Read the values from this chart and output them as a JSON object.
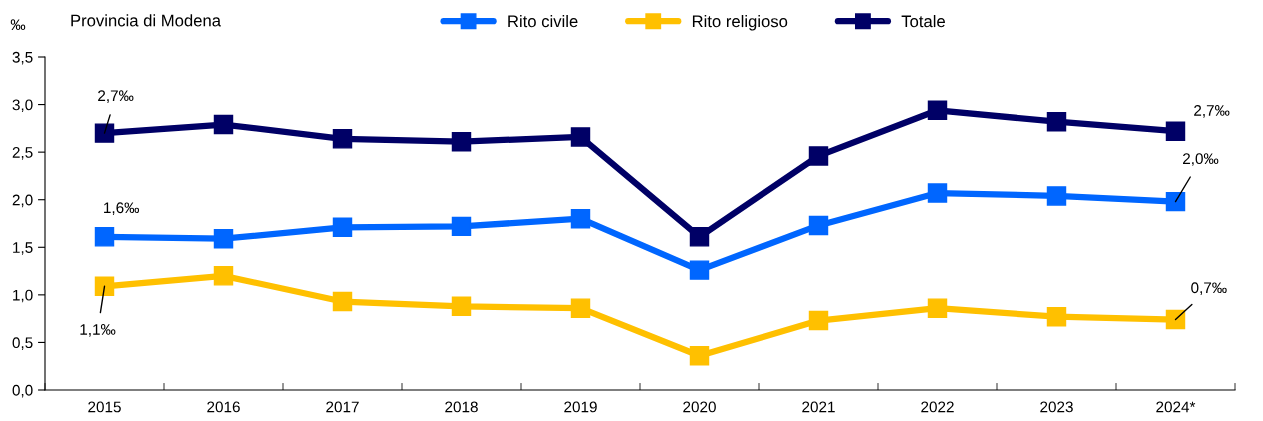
{
  "chart_data": {
    "type": "line",
    "title": "Provincia di Modena",
    "ylabel": "‰",
    "categories": [
      "2015",
      "2016",
      "2017",
      "2018",
      "2019",
      "2020",
      "2021",
      "2022",
      "2023",
      "2024*"
    ],
    "series": [
      {
        "name": "Rito civile",
        "color": "#0066ff",
        "values": [
          1.61,
          1.59,
          1.71,
          1.72,
          1.8,
          1.26,
          1.73,
          2.07,
          2.04,
          1.98
        ]
      },
      {
        "name": "Rito religioso",
        "color": "#ffc000",
        "values": [
          1.09,
          1.2,
          0.93,
          0.88,
          0.86,
          0.36,
          0.73,
          0.86,
          0.77,
          0.74
        ]
      },
      {
        "name": "Totale",
        "color": "#000066",
        "values": [
          2.7,
          2.79,
          2.64,
          2.61,
          2.66,
          1.61,
          2.46,
          2.94,
          2.82,
          2.72
        ]
      }
    ],
    "ylim": [
      0,
      3.5
    ],
    "yticks": [
      {
        "value": 0,
        "label": "0,0"
      },
      {
        "value": 0.5,
        "label": "0,5"
      },
      {
        "value": 1,
        "label": "1,0"
      },
      {
        "value": 1.5,
        "label": "1,5"
      },
      {
        "value": 2,
        "label": "2,0"
      },
      {
        "value": 2.5,
        "label": "2,5"
      },
      {
        "value": 3,
        "label": "3,0"
      },
      {
        "value": 3.5,
        "label": "3,5"
      }
    ],
    "annotations": [
      {
        "text": "2,7‰",
        "x": "2015",
        "y": 2.7
      },
      {
        "text": "1,6‰",
        "x": "2015",
        "y": 1.61
      },
      {
        "text": "1,1‰",
        "x": "2015",
        "y": 1.09
      },
      {
        "text": "2,7‰",
        "x": "2024*",
        "y": 2.72
      },
      {
        "text": "2,0‰",
        "x": "2024*",
        "y": 1.98
      },
      {
        "text": "0,7‰",
        "x": "2024*",
        "y": 0.74
      }
    ],
    "marker": "square",
    "line_style": "solid",
    "grid": false,
    "legend": "top"
  }
}
